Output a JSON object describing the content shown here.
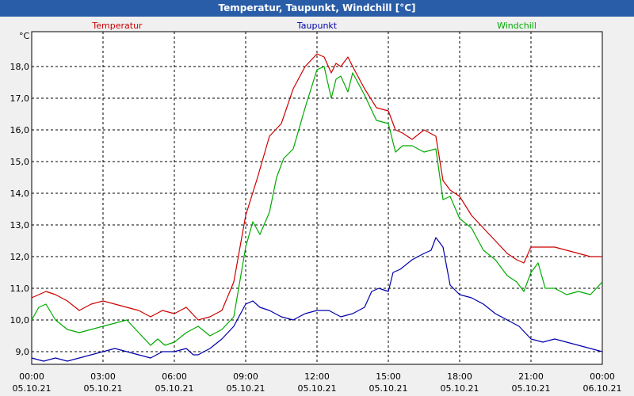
{
  "window": {
    "title": "Temperatur, Taupunkt, Windchill [°C]"
  },
  "chart_data": {
    "type": "line",
    "title": "Temperatur, Taupunkt, Windchill [°C]",
    "ylabel": "°C",
    "ylim": [
      8.6,
      19.1
    ],
    "yticks": [
      9.0,
      10.0,
      11.0,
      12.0,
      13.0,
      14.0,
      15.0,
      16.0,
      17.0,
      18.0
    ],
    "ytick_labels": [
      "9,0",
      "10,0",
      "11,0",
      "12,0",
      "13,0",
      "14,0",
      "15,0",
      "16,0",
      "17,0",
      "18,0"
    ],
    "xlim": [
      0,
      24
    ],
    "xticks": [
      0,
      3,
      6,
      9,
      12,
      15,
      18,
      21,
      24
    ],
    "xtick_time_labels": [
      "00:00",
      "03:00",
      "06:00",
      "09:00",
      "12:00",
      "15:00",
      "18:00",
      "21:00",
      "00:00"
    ],
    "xtick_date_labels": [
      "05.10.21",
      "05.10.21",
      "05.10.21",
      "05.10.21",
      "05.10.21",
      "05.10.21",
      "05.10.21",
      "05.10.21",
      "06.10.21"
    ],
    "grid": true,
    "legend": [
      "Temperatur",
      "Taupunkt",
      "Windchill"
    ],
    "series": [
      {
        "name": "Temperatur",
        "color": "#cc0000",
        "x": [
          0,
          0.3,
          0.6,
          1,
          1.5,
          2,
          2.5,
          3,
          3.5,
          4,
          4.5,
          5,
          5.5,
          6,
          6.5,
          7,
          7.5,
          8,
          8.5,
          9,
          9.5,
          10,
          10.5,
          11,
          11.5,
          12,
          12.3,
          12.6,
          12.8,
          13,
          13.3,
          13.5,
          14,
          14.5,
          15,
          15.3,
          15.6,
          16,
          16.5,
          17,
          17.3,
          17.6,
          18,
          18.5,
          19,
          19.5,
          20,
          20.4,
          20.7,
          21,
          21.5,
          22,
          22.5,
          23,
          23.5,
          24
        ],
        "values": [
          10.7,
          10.8,
          10.9,
          10.8,
          10.6,
          10.3,
          10.5,
          10.6,
          10.5,
          10.4,
          10.3,
          10.1,
          10.3,
          10.2,
          10.4,
          10.0,
          10.1,
          10.3,
          11.2,
          13.3,
          14.5,
          15.8,
          16.2,
          17.3,
          18.0,
          18.4,
          18.3,
          17.8,
          18.1,
          18.0,
          18.3,
          18.0,
          17.3,
          16.7,
          16.6,
          16.0,
          15.9,
          15.7,
          16.0,
          15.8,
          14.4,
          14.1,
          13.9,
          13.3,
          12.9,
          12.5,
          12.1,
          11.9,
          11.8,
          12.3,
          12.3,
          12.3,
          12.2,
          12.1,
          12.0,
          12.0
        ]
      },
      {
        "name": "Taupunkt",
        "color": "#0000aa",
        "x": [
          0,
          0.5,
          1,
          1.5,
          2,
          2.5,
          3,
          3.5,
          4,
          4.5,
          5,
          5.5,
          6,
          6.5,
          6.8,
          7,
          7.5,
          8,
          8.5,
          9,
          9.3,
          9.6,
          10,
          10.5,
          11,
          11.5,
          12,
          12.5,
          13,
          13.5,
          14,
          14.3,
          14.6,
          15,
          15.2,
          15.5,
          16,
          16.5,
          16.8,
          17,
          17.3,
          17.6,
          18,
          18.5,
          19,
          19.5,
          20,
          20.5,
          21,
          21.5,
          22,
          22.5,
          23,
          23.5,
          24
        ],
        "values": [
          8.8,
          8.7,
          8.8,
          8.7,
          8.8,
          8.9,
          9.0,
          9.1,
          9.0,
          8.9,
          8.8,
          9.0,
          9.0,
          9.1,
          8.9,
          8.9,
          9.1,
          9.4,
          9.8,
          10.5,
          10.6,
          10.4,
          10.3,
          10.1,
          10.0,
          10.2,
          10.3,
          10.3,
          10.1,
          10.2,
          10.4,
          10.9,
          11.0,
          10.9,
          11.5,
          11.6,
          11.9,
          12.1,
          12.2,
          12.6,
          12.3,
          11.1,
          10.8,
          10.7,
          10.5,
          10.2,
          10.0,
          9.8,
          9.4,
          9.3,
          9.4,
          9.3,
          9.2,
          9.1,
          9.0
        ]
      },
      {
        "name": "Windchill",
        "color": "#00aa00",
        "x": [
          0,
          0.3,
          0.6,
          1,
          1.5,
          2,
          2.5,
          3,
          3.5,
          4,
          4.5,
          5,
          5.3,
          5.6,
          6,
          6.5,
          7,
          7.5,
          8,
          8.5,
          9,
          9.3,
          9.6,
          10,
          10.3,
          10.6,
          11,
          11.5,
          12,
          12.3,
          12.6,
          12.8,
          13,
          13.3,
          13.5,
          14,
          14.5,
          15,
          15.3,
          15.6,
          16,
          16.5,
          17,
          17.3,
          17.6,
          18,
          18.5,
          19,
          19.5,
          20,
          20.4,
          20.7,
          21,
          21.3,
          21.6,
          22,
          22.5,
          23,
          23.5,
          24
        ],
        "values": [
          10.0,
          10.4,
          10.5,
          10.0,
          9.7,
          9.6,
          9.7,
          9.8,
          9.9,
          10.0,
          9.6,
          9.2,
          9.4,
          9.2,
          9.3,
          9.6,
          9.8,
          9.5,
          9.7,
          10.1,
          12.3,
          13.1,
          12.7,
          13.4,
          14.5,
          15.1,
          15.4,
          16.7,
          17.9,
          18.0,
          17.0,
          17.6,
          17.7,
          17.2,
          17.8,
          17.1,
          16.3,
          16.2,
          15.3,
          15.5,
          15.5,
          15.3,
          15.4,
          13.8,
          13.9,
          13.2,
          12.9,
          12.2,
          11.9,
          11.4,
          11.2,
          10.9,
          11.5,
          11.8,
          11.0,
          11.0,
          10.8,
          10.9,
          10.8,
          11.2
        ]
      }
    ]
  }
}
